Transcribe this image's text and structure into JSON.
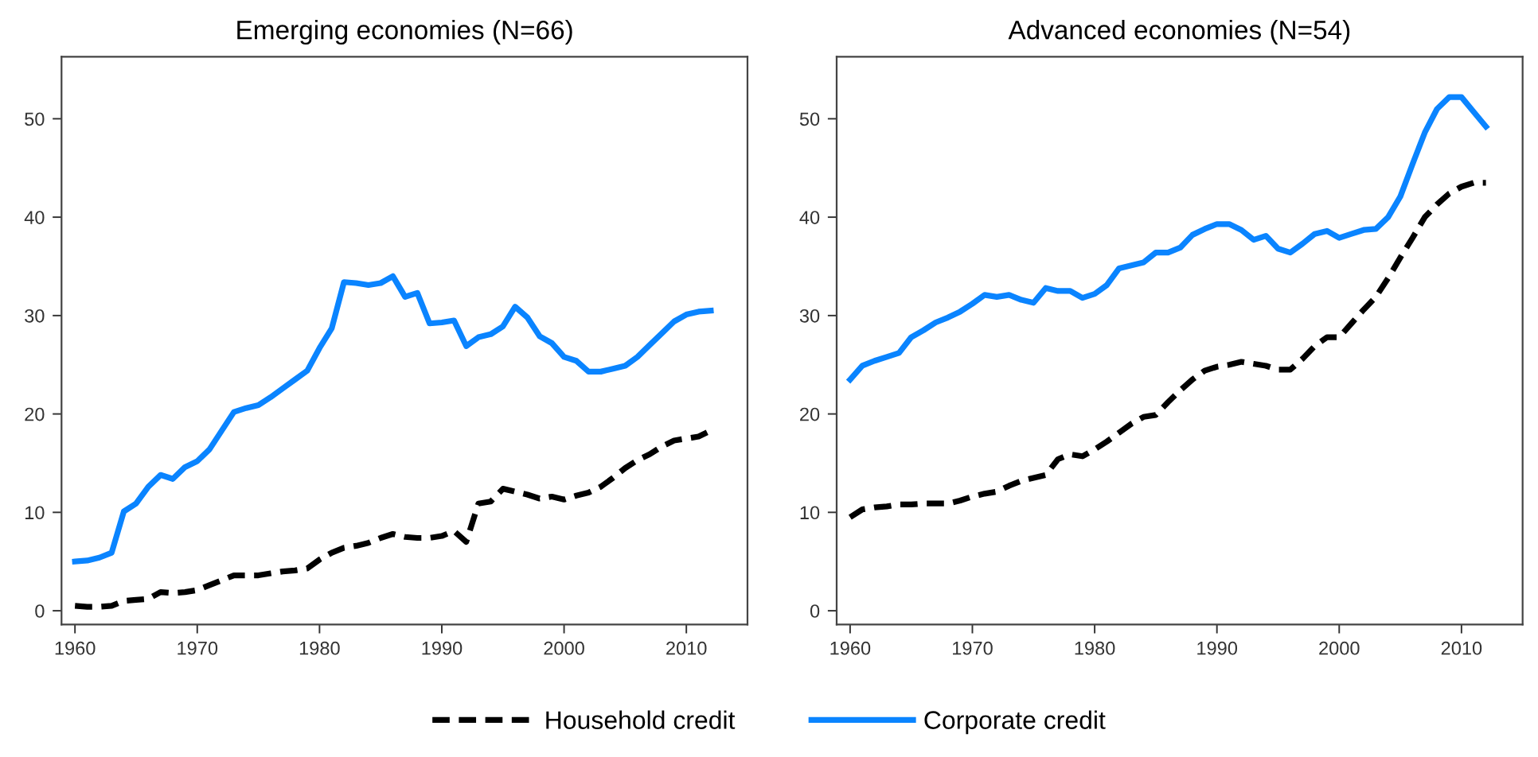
{
  "chart_data": [
    {
      "type": "line",
      "title": "Emerging economies (N=66)",
      "x": [
        1960,
        1961,
        1962,
        1963,
        1964,
        1965,
        1966,
        1967,
        1968,
        1969,
        1970,
        1971,
        1972,
        1973,
        1974,
        1975,
        1976,
        1977,
        1978,
        1979,
        1980,
        1981,
        1982,
        1983,
        1984,
        1985,
        1986,
        1987,
        1988,
        1989,
        1990,
        1991,
        1992,
        1993,
        1994,
        1995,
        1996,
        1997,
        1998,
        1999,
        2000,
        2001,
        2002,
        2003,
        2004,
        2005,
        2006,
        2007,
        2008,
        2009,
        2010,
        2011,
        2012
      ],
      "xlim": [
        1958.9,
        2015
      ],
      "xticks": [
        1960,
        1970,
        1980,
        1990,
        2000,
        2010
      ],
      "ylim": [
        -1.4,
        56.3
      ],
      "yticks": [
        0,
        10,
        20,
        30,
        40,
        50
      ],
      "grid": false,
      "series": [
        {
          "color": "#000000",
          "line_style": "dashed",
          "values": [
            0.5,
            0.4,
            0.4,
            0.5,
            1.0,
            1.1,
            1.2,
            1.9,
            1.8,
            1.9,
            2.1,
            2.6,
            3.1,
            3.6,
            3.6,
            3.6,
            3.8,
            4.0,
            4.1,
            4.3,
            5.2,
            5.9,
            6.4,
            6.6,
            6.9,
            7.4,
            7.8,
            7.5,
            7.4,
            7.4,
            7.6,
            8.1,
            7.0,
            10.9,
            11.1,
            12.4,
            12.1,
            11.8,
            11.4,
            11.6,
            11.3,
            11.7,
            12.0,
            12.6,
            13.5,
            14.5,
            15.3,
            15.9,
            16.7,
            17.3,
            17.5,
            17.7,
            18.3
          ]
        },
        {
          "color": "#0a84ff",
          "line_style": "solid",
          "values": [
            5.0,
            5.1,
            5.4,
            5.9,
            10.1,
            10.9,
            12.6,
            13.8,
            13.4,
            14.6,
            15.2,
            16.4,
            18.3,
            20.2,
            20.6,
            20.9,
            21.7,
            22.6,
            23.5,
            24.4,
            26.7,
            28.7,
            33.4,
            33.3,
            33.1,
            33.3,
            34.0,
            31.9,
            32.3,
            29.2,
            29.3,
            29.5,
            26.9,
            27.8,
            28.1,
            28.9,
            30.9,
            29.8,
            27.9,
            27.2,
            25.8,
            25.4,
            24.3,
            24.3,
            24.6,
            24.9,
            25.8,
            27.0,
            28.2,
            29.4,
            30.1,
            30.4,
            30.5
          ]
        }
      ]
    },
    {
      "type": "line",
      "title": "Advanced economies (N=54)",
      "x": [
        1960,
        1961,
        1962,
        1963,
        1964,
        1965,
        1966,
        1967,
        1968,
        1969,
        1970,
        1971,
        1972,
        1973,
        1974,
        1975,
        1976,
        1977,
        1978,
        1979,
        1980,
        1981,
        1982,
        1983,
        1984,
        1985,
        1986,
        1987,
        1988,
        1989,
        1990,
        1991,
        1992,
        1993,
        1994,
        1995,
        1996,
        1997,
        1998,
        1999,
        2000,
        2001,
        2002,
        2003,
        2004,
        2005,
        2006,
        2007,
        2008,
        2009,
        2010,
        2011,
        2012
      ],
      "xlim": [
        1958.9,
        2015
      ],
      "xticks": [
        1960,
        1970,
        1980,
        1990,
        2000,
        2010
      ],
      "ylim": [
        -1.4,
        56.3
      ],
      "yticks": [
        0,
        10,
        20,
        30,
        40,
        50
      ],
      "grid": false,
      "legend": "bottom",
      "series": [
        {
          "name": "Household credit",
          "color": "#000000",
          "line_style": "dashed",
          "values": [
            9.5,
            10.3,
            10.5,
            10.6,
            10.8,
            10.8,
            10.9,
            10.9,
            10.9,
            11.2,
            11.6,
            11.9,
            12.1,
            12.7,
            13.2,
            13.5,
            13.8,
            15.4,
            15.9,
            15.7,
            16.4,
            17.2,
            18.1,
            19.0,
            19.7,
            19.9,
            21.2,
            22.4,
            23.5,
            24.4,
            24.8,
            25.0,
            25.3,
            25.1,
            24.9,
            24.5,
            24.5,
            25.6,
            26.9,
            27.8,
            27.8,
            29.2,
            30.6,
            31.9,
            33.8,
            35.9,
            37.9,
            40.0,
            41.3,
            42.4,
            43.1,
            43.5,
            43.5
          ]
        },
        {
          "name": "Corporate credit",
          "color": "#0a84ff",
          "line_style": "solid",
          "values": [
            23.5,
            24.9,
            25.4,
            25.8,
            26.2,
            27.8,
            28.5,
            29.3,
            29.8,
            30.4,
            31.2,
            32.1,
            31.9,
            32.1,
            31.6,
            31.3,
            32.8,
            32.5,
            32.5,
            31.8,
            32.2,
            33.1,
            34.8,
            35.1,
            35.4,
            36.4,
            36.4,
            36.9,
            38.2,
            38.8,
            39.3,
            39.3,
            38.7,
            37.7,
            38.1,
            36.8,
            36.4,
            37.3,
            38.3,
            38.6,
            37.9,
            38.3,
            38.7,
            38.8,
            40.0,
            42.1,
            45.4,
            48.6,
            51.0,
            52.2,
            52.2,
            50.7,
            49.2
          ]
        }
      ]
    }
  ]
}
